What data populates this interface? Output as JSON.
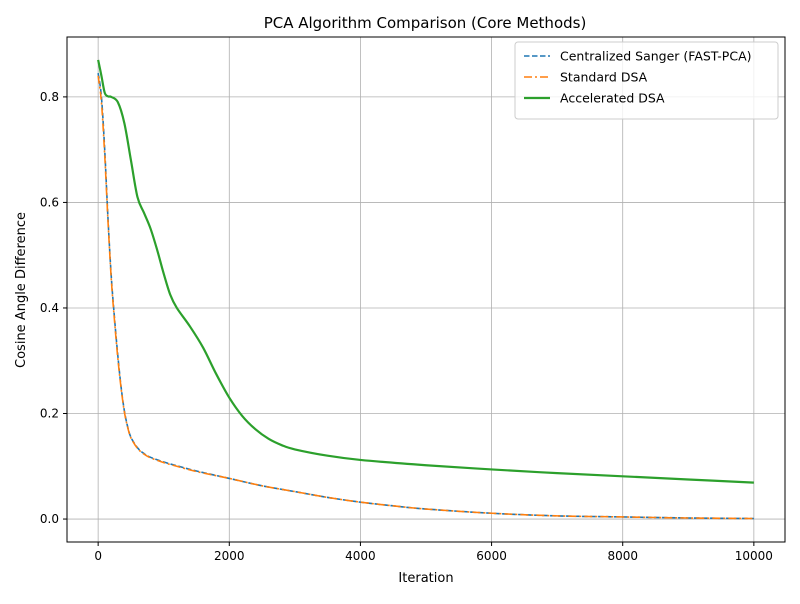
{
  "chart_data": {
    "type": "line",
    "title": "PCA Algorithm Comparison (Core Methods)",
    "xlabel": "Iteration",
    "ylabel": "Cosine Angle Difference",
    "xlim": [
      -475,
      10475
    ],
    "ylim": [
      -0.0435,
      0.9135
    ],
    "xticks": [
      0,
      2000,
      4000,
      6000,
      8000,
      10000
    ],
    "xtick_labels": [
      "0",
      "2000",
      "4000",
      "6000",
      "8000",
      "10000"
    ],
    "yticks": [
      0.0,
      0.2,
      0.4,
      0.6,
      0.8
    ],
    "ytick_labels": [
      "0.0",
      "0.2",
      "0.4",
      "0.6",
      "0.8"
    ],
    "grid": true,
    "legend_position": "top-right",
    "series": [
      {
        "name": "Centralized Sanger (FAST-PCA)",
        "color": "#1f77b4",
        "style": "dashed",
        "x": [
          0,
          50,
          100,
          150,
          200,
          250,
          300,
          350,
          400,
          450,
          500,
          600,
          700,
          800,
          1000,
          1200,
          1500,
          2000,
          2500,
          3000,
          3500,
          4000,
          4500,
          5000,
          6000,
          7000,
          8000,
          9000,
          10000
        ],
        "y": [
          0.845,
          0.8,
          0.7,
          0.57,
          0.46,
          0.38,
          0.31,
          0.25,
          0.205,
          0.175,
          0.155,
          0.135,
          0.124,
          0.117,
          0.108,
          0.101,
          0.091,
          0.077,
          0.063,
          0.052,
          0.041,
          0.032,
          0.025,
          0.019,
          0.011,
          0.006,
          0.004,
          0.002,
          0.001
        ]
      },
      {
        "name": "Standard DSA",
        "color": "#ff7f0e",
        "style": "dashdot",
        "x": [
          0,
          50,
          100,
          150,
          200,
          250,
          300,
          350,
          400,
          450,
          500,
          600,
          700,
          800,
          1000,
          1200,
          1500,
          2000,
          2500,
          3000,
          3500,
          4000,
          4500,
          5000,
          6000,
          7000,
          8000,
          9000,
          10000
        ],
        "y": [
          0.84,
          0.79,
          0.69,
          0.565,
          0.455,
          0.375,
          0.305,
          0.248,
          0.203,
          0.174,
          0.154,
          0.134,
          0.123,
          0.116,
          0.107,
          0.1,
          0.09,
          0.077,
          0.063,
          0.052,
          0.041,
          0.032,
          0.025,
          0.019,
          0.011,
          0.006,
          0.004,
          0.002,
          0.001
        ]
      },
      {
        "name": "Accelerated DSA",
        "color": "#2ca02c",
        "style": "solid",
        "x": [
          0,
          50,
          100,
          150,
          200,
          300,
          400,
          500,
          600,
          700,
          800,
          900,
          1000,
          1100,
          1200,
          1400,
          1600,
          1800,
          2000,
          2200,
          2400,
          2600,
          2800,
          3000,
          3500,
          4000,
          5000,
          6000,
          7000,
          8000,
          9000,
          10000
        ],
        "y": [
          0.87,
          0.84,
          0.808,
          0.801,
          0.8,
          0.79,
          0.75,
          0.68,
          0.61,
          0.58,
          0.55,
          0.51,
          0.465,
          0.425,
          0.4,
          0.365,
          0.325,
          0.275,
          0.23,
          0.195,
          0.17,
          0.152,
          0.14,
          0.132,
          0.12,
          0.112,
          0.102,
          0.094,
          0.087,
          0.081,
          0.075,
          0.069
        ]
      }
    ]
  }
}
